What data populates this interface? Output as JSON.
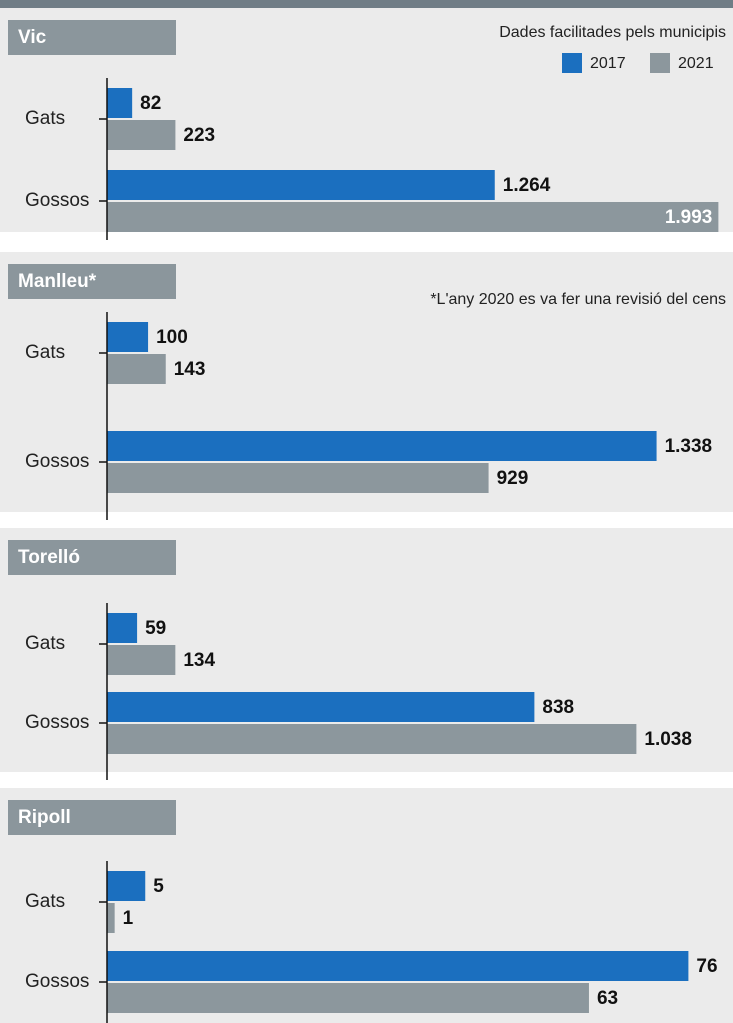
{
  "chart_data": [
    {
      "type": "bar",
      "orientation": "horizontal",
      "title": "Vic",
      "note": "Dades facilitades pels municipis",
      "legend": "top-right",
      "categories": [
        "Gats",
        "Gossos"
      ],
      "xlim": [
        0,
        1995
      ],
      "series": [
        {
          "name": "2017",
          "color": "#1b6fbf",
          "values": [
            82,
            1264
          ],
          "value_labels": [
            "82",
            "1.264"
          ]
        },
        {
          "name": "2021",
          "color": "#8c979d",
          "values": [
            223,
            1993
          ],
          "value_labels": [
            "223",
            "1.993"
          ]
        }
      ]
    },
    {
      "type": "bar",
      "orientation": "horizontal",
      "title": "Manlleu*",
      "note": "*L'any 2020 es va fer una revisió del cens",
      "categories": [
        "Gats",
        "Gossos"
      ],
      "xlim": [
        0,
        1490
      ],
      "series": [
        {
          "name": "2017",
          "color": "#1b6fbf",
          "values": [
            100,
            1338
          ],
          "value_labels": [
            "100",
            "1.338"
          ]
        },
        {
          "name": "2021",
          "color": "#8c979d",
          "values": [
            143,
            929
          ],
          "value_labels": [
            "143",
            "929"
          ]
        }
      ]
    },
    {
      "type": "bar",
      "orientation": "horizontal",
      "title": "Torelló",
      "categories": [
        "Gats",
        "Gossos"
      ],
      "xlim": [
        0,
        1200
      ],
      "series": [
        {
          "name": "2017",
          "color": "#1b6fbf",
          "values": [
            59,
            838
          ],
          "value_labels": [
            "59",
            "838"
          ]
        },
        {
          "name": "2021",
          "color": "#8c979d",
          "values": [
            134,
            1038
          ],
          "value_labels": [
            "134",
            "1.038"
          ]
        }
      ]
    },
    {
      "type": "bar",
      "orientation": "horizontal",
      "title": "Ripoll",
      "categories": [
        "Gats",
        "Gossos"
      ],
      "xlim": [
        0,
        80
      ],
      "series": [
        {
          "name": "2017",
          "color": "#1b6fbf",
          "values": [
            5,
            76
          ],
          "value_labels": [
            "5",
            "76"
          ]
        },
        {
          "name": "2021",
          "color": "#8c979d",
          "values": [
            1,
            63
          ],
          "value_labels": [
            "1",
            "63"
          ]
        }
      ]
    }
  ]
}
